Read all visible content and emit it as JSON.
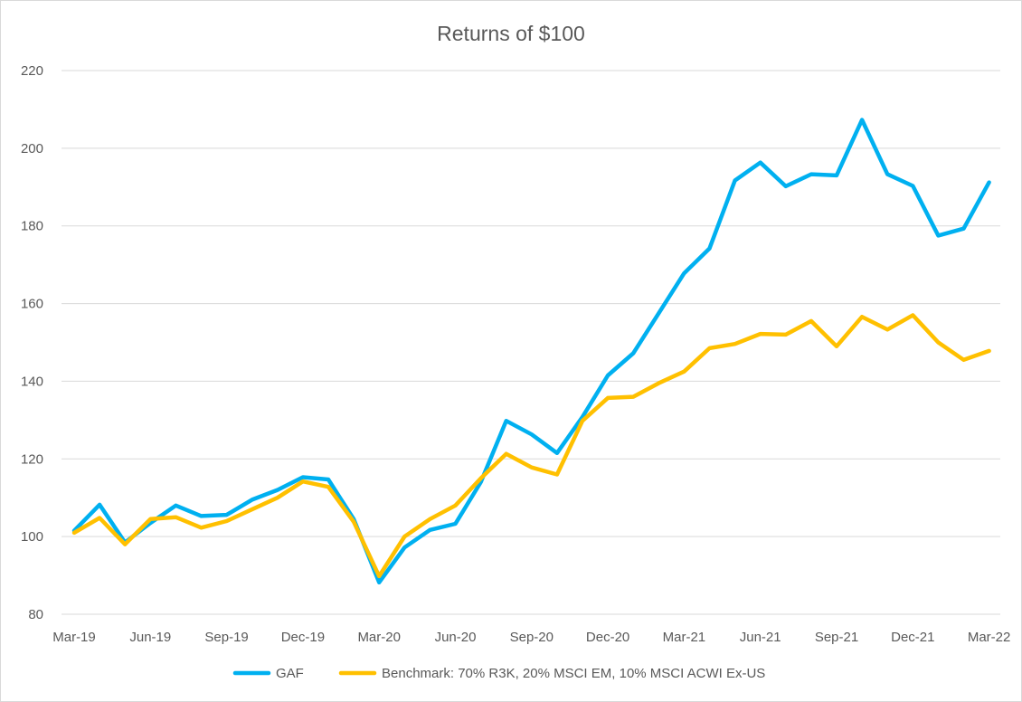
{
  "chart_data": {
    "type": "line",
    "title": "Returns of $100",
    "xlabel": "",
    "ylabel": "",
    "ylim": [
      80,
      220
    ],
    "yticks": [
      "80",
      "100",
      "120",
      "140",
      "160",
      "180",
      "200",
      "220"
    ],
    "categories": [
      "Mar-19",
      "Apr-19",
      "May-19",
      "Jun-19",
      "Jul-19",
      "Aug-19",
      "Sep-19",
      "Oct-19",
      "Nov-19",
      "Dec-19",
      "Jan-20",
      "Feb-20",
      "Mar-20",
      "Apr-20",
      "May-20",
      "Jun-20",
      "Jul-20",
      "Aug-20",
      "Sep-20",
      "Oct-20",
      "Nov-20",
      "Dec-20",
      "Jan-21",
      "Feb-21",
      "Mar-21",
      "Apr-21",
      "May-21",
      "Jun-21",
      "Jul-21",
      "Aug-21",
      "Sep-21",
      "Oct-21",
      "Nov-21",
      "Dec-21",
      "Jan-22",
      "Feb-22",
      "Mar-22"
    ],
    "xtick_labels": [
      "Mar-19",
      "Jun-19",
      "Sep-19",
      "Dec-19",
      "Mar-20",
      "Jun-20",
      "Sep-20",
      "Dec-20",
      "Mar-21",
      "Jun-21",
      "Sep-21",
      "Dec-21",
      "Mar-22"
    ],
    "grid": true,
    "legend_position": "bottom",
    "series": [
      {
        "name": "GAF",
        "color": "#00b0f0",
        "values": [
          101.5,
          108.2,
          98.5,
          103.5,
          108.0,
          105.3,
          105.6,
          109.5,
          112.0,
          115.3,
          114.7,
          104.5,
          88.2,
          97.2,
          101.7,
          103.3,
          114.0,
          129.8,
          126.3,
          121.5,
          130.8,
          141.5,
          147.2,
          157.5,
          167.8,
          174.2,
          191.7,
          196.3,
          190.2,
          193.3,
          193.0,
          207.3,
          193.3,
          190.3,
          177.5,
          179.3,
          191.2
        ]
      },
      {
        "name": "Benchmark: 70% R3K, 20% MSCI EM, 10% MSCI ACWI Ex-US",
        "color": "#ffc000",
        "values": [
          101.0,
          104.8,
          98.0,
          104.5,
          105.0,
          102.3,
          104.0,
          107.0,
          110.0,
          114.2,
          112.8,
          103.8,
          89.8,
          100.0,
          104.5,
          108.0,
          115.0,
          121.3,
          117.8,
          116.0,
          129.8,
          135.7,
          136.0,
          139.5,
          142.5,
          148.5,
          149.6,
          152.2,
          152.0,
          155.5,
          149.0,
          156.6,
          153.3,
          157.0,
          150.0,
          145.5,
          147.8
        ]
      }
    ]
  }
}
